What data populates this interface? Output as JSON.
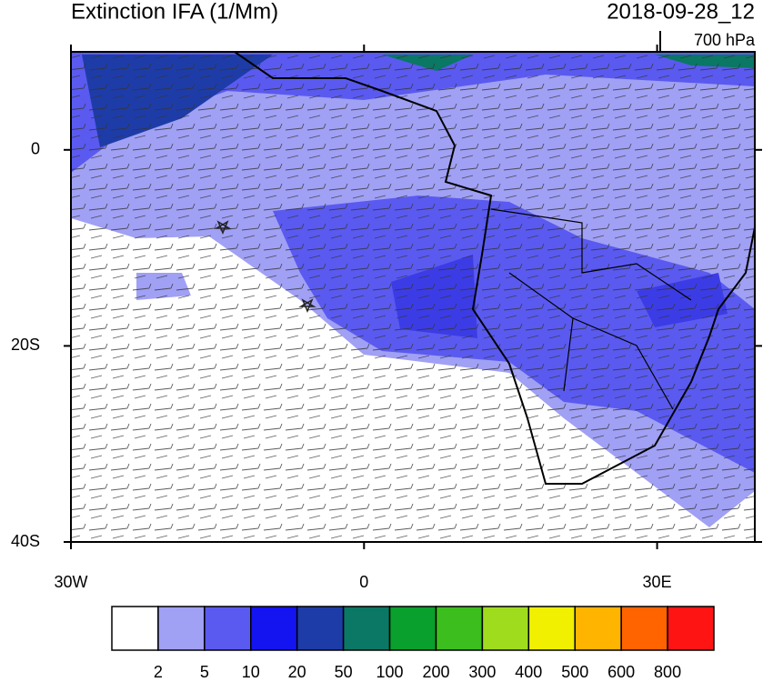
{
  "chart_data": {
    "type": "map",
    "title": "Extinction IFA (1/Mm)",
    "subtitle": "2018-09-28_12",
    "level": "700 hPa",
    "xlim": [
      -30,
      40
    ],
    "ylim": [
      -40,
      10
    ],
    "xticks": [
      {
        "value": -30,
        "label": "30W"
      },
      0,
      {
        "value": 30,
        "label": "30E"
      }
    ],
    "yticks": [
      0,
      {
        "value": -20,
        "label": "20S"
      },
      {
        "value": -40,
        "label": "40S"
      }
    ],
    "colorbar": {
      "levels": [
        2,
        5,
        10,
        20,
        50,
        100,
        200,
        300,
        400,
        500,
        600,
        800
      ],
      "colors": [
        "#ffffff",
        "#a0a0f5",
        "#5a5af0",
        "#1414f0",
        "#1e3ca8",
        "#0a7864",
        "#0aa02d",
        "#3cbe1e",
        "#a0dc1e",
        "#f0f000",
        "#ffb400",
        "#ff6400",
        "#ff1414"
      ]
    }
  }
}
